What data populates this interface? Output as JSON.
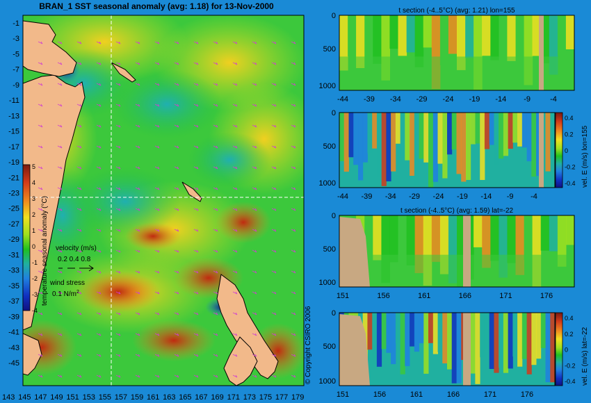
{
  "colors": {
    "background": "#1a8ad6",
    "land": "#f2b98a",
    "tan": "#c8a882"
  },
  "main_map": {
    "title": "BRAN_1 SST seasonal anomaly (avg: 1.18) for 13-Nov-2000",
    "lat_ticks": [
      "-1",
      "-3",
      "-5",
      "-7",
      "-9",
      "-11",
      "-13",
      "-15",
      "-17",
      "-19",
      "-21",
      "-23",
      "-25",
      "-27",
      "-29",
      "-31",
      "-33",
      "-35",
      "-37",
      "-39",
      "-41",
      "-43",
      "-45"
    ],
    "lon_ticks": [
      "143",
      "145",
      "147",
      "149",
      "151",
      "153",
      "155",
      "157",
      "159",
      "161",
      "163",
      "165",
      "167",
      "169",
      "171",
      "173",
      "175",
      "177",
      "179"
    ],
    "colorbar_ticks": [
      "5",
      "4",
      "3",
      "2",
      "1",
      "0",
      "-1",
      "-2",
      "-3",
      "-4"
    ],
    "colorbar_label": "temperature seasonal anomaly (°C)",
    "velocity_label": "velocity (m/s)",
    "velocity_scale": "0.2 0.4 0.8",
    "wind_label": "wind stress",
    "wind_scale": "0.1 N/m",
    "wind_exp": "2",
    "copyright": "© Copyright CSIRO 2006"
  },
  "chart_data": [
    {
      "type": "heatmap",
      "panel": "t-section-lon155",
      "title": "t section (-4..5°C) (avg: 1.21) lon=155",
      "x_ticks": [
        "-44",
        "-39",
        "-34",
        "-29",
        "-24",
        "-19",
        "-14",
        "-9",
        "-4"
      ],
      "y_ticks": [
        "0",
        "500",
        "1000"
      ]
    },
    {
      "type": "heatmap",
      "panel": "vel-section-lon155",
      "title": "",
      "x_ticks": [
        "-44",
        "-39",
        "-34",
        "-29",
        "-24",
        "-19",
        "-14",
        "-9",
        "-4"
      ],
      "y_ticks": [
        "0",
        "500",
        "1000"
      ],
      "colorbar_label": "vel. E (m/s) lon=155",
      "colorbar_ticks": [
        "0.4",
        "0.2",
        "0",
        "-0.2",
        "-0.4"
      ]
    },
    {
      "type": "heatmap",
      "panel": "t-section-lat22",
      "title": "t section (-4..5°C) (avg: 1.59) lat=-22",
      "x_ticks": [
        "151",
        "156",
        "161",
        "166",
        "171",
        "176"
      ],
      "y_ticks": [
        "0",
        "500",
        "1000"
      ]
    },
    {
      "type": "heatmap",
      "panel": "vel-section-lat22",
      "title": "",
      "x_ticks": [
        "151",
        "156",
        "161",
        "166",
        "171",
        "176"
      ],
      "y_ticks": [
        "0",
        "500",
        "1000"
      ],
      "colorbar_label": "vel. E (m/s) lat=-22",
      "colorbar_ticks": [
        "0.4",
        "0.2",
        "0",
        "-0.2",
        "-0.4"
      ]
    }
  ]
}
